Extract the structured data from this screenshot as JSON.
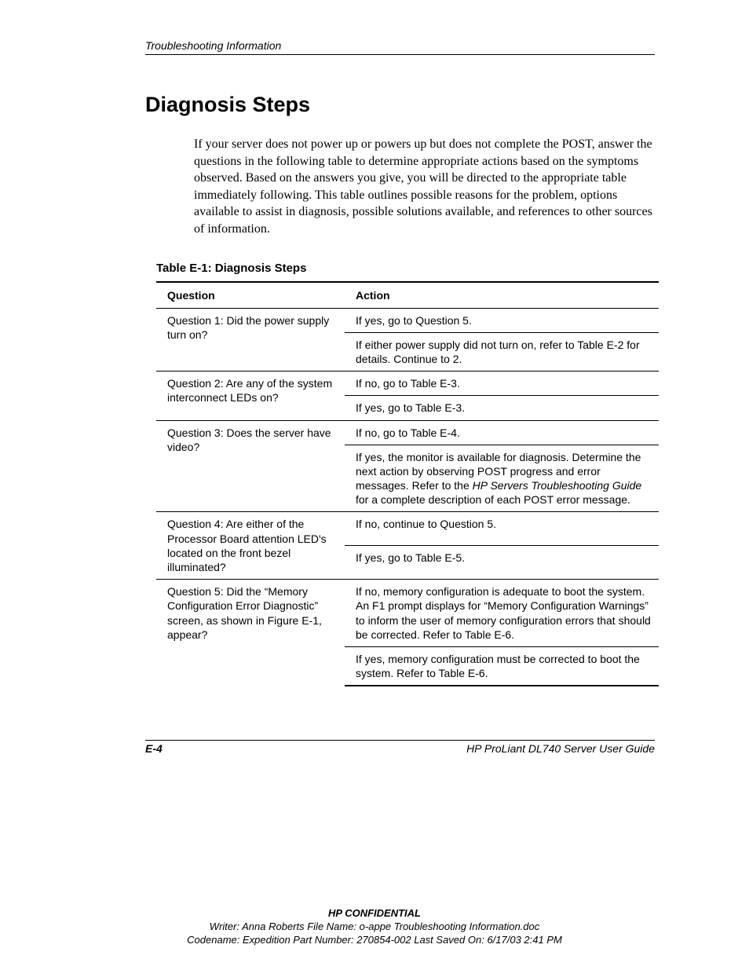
{
  "header": {
    "running_title": "Troubleshooting Information"
  },
  "section": {
    "title": "Diagnosis Steps",
    "intro": "If your server does not power up or powers up but does not complete the POST, answer the questions in the following table to determine appropriate actions based on the symptoms observed. Based on the answers you give, you will be directed to the appropriate table immediately following. This table outlines possible reasons for the problem, options available to assist in diagnosis, possible solutions available, and references to other sources of information."
  },
  "table": {
    "caption": "Table E-1:  Diagnosis Steps",
    "columns": [
      "Question",
      "Action"
    ],
    "rows": [
      {
        "question": "Question 1: Did the power supply turn on?",
        "actions": [
          "If yes, go to Question 5.",
          "If either power supply did not turn on, refer to Table E-2 for details. Continue to 2."
        ]
      },
      {
        "question": "Question 2: Are any of the system interconnect LEDs on?",
        "actions": [
          "If no, go to Table E-3.",
          "If yes, go to Table E-3."
        ]
      },
      {
        "question": "Question 3: Does the server have video?",
        "actions": [
          "If no, go to Table E-4."
        ],
        "action_rich": {
          "pre": "If yes, the monitor is available for diagnosis. Determine the next action by observing POST progress and error messages. Refer to the ",
          "italic": "HP Servers Troubleshooting Guide",
          "post": " for a complete description of each POST error message."
        }
      },
      {
        "question": "Question 4: Are either of the Processor Board attention LED's located on the front bezel illuminated?",
        "actions": [
          "If no, continue to Question 5.",
          "If yes, go to Table E-5."
        ]
      },
      {
        "question": "Question 5: Did the “Memory Configuration Error Diagnostic” screen, as shown in Figure E-1, appear?",
        "actions": [
          "If no, memory configuration is adequate to boot the system. An F1 prompt displays for “Memory Configuration Warnings” to inform the user of memory configuration errors that should be corrected. Refer to Table E-6.",
          "If yes, memory configuration must be corrected to boot the system. Refer to Table E-6."
        ]
      }
    ]
  },
  "footer": {
    "page_number": "E-4",
    "guide_title": "HP ProLiant DL740 Server User Guide"
  },
  "confidential": {
    "title": "HP CONFIDENTIAL",
    "line1": "Writer: Anna Roberts File Name: o-appe Troubleshooting Information.doc",
    "line2": "Codename: Expedition Part Number: 270854-002 Last Saved On: 6/17/03 2:41 PM"
  }
}
